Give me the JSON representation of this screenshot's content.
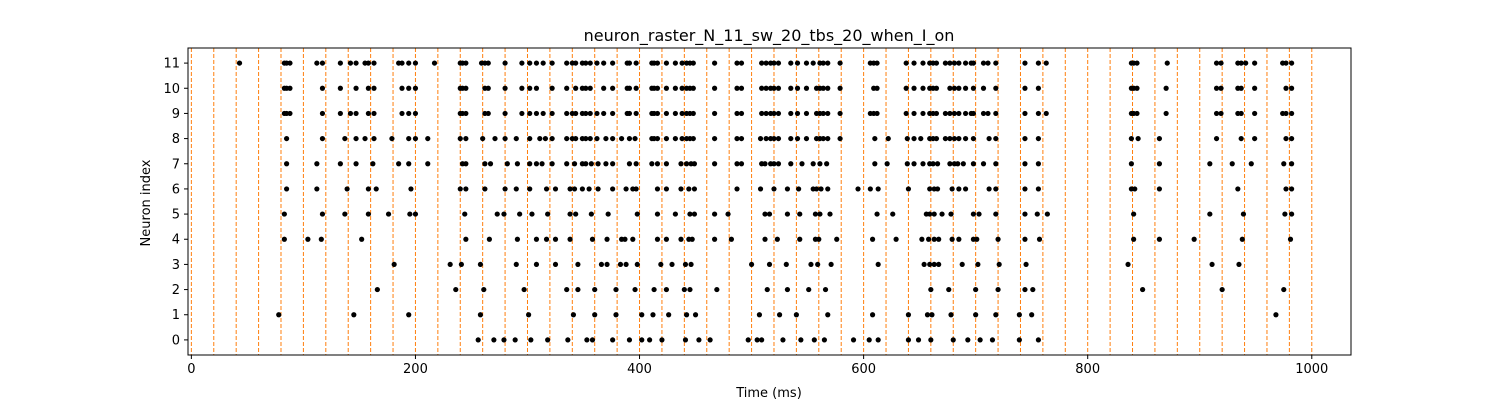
{
  "chart_data": {
    "type": "scatter",
    "title": "neuron_raster_N_11_sw_20_tbs_20_when_I_on",
    "xlabel": "Time (ms)",
    "ylabel": "Neuron index",
    "xlim": [
      -3,
      1035
    ],
    "ylim": [
      -0.6,
      11.6
    ],
    "x_ticks": [
      0,
      200,
      400,
      600,
      800,
      1000
    ],
    "y_ticks": [
      0,
      1,
      2,
      3,
      4,
      5,
      6,
      7,
      8,
      9,
      10,
      11
    ],
    "marker_color": "#000000",
    "vline_color": "#ff7f0e",
    "vlines": [
      0,
      20,
      40,
      60,
      80,
      100,
      120,
      140,
      160,
      180,
      200,
      220,
      240,
      260,
      280,
      300,
      320,
      340,
      360,
      380,
      400,
      420,
      440,
      460,
      480,
      500,
      520,
      540,
      560,
      580,
      600,
      620,
      640,
      660,
      680,
      700,
      720,
      740,
      760,
      780,
      800,
      820,
      840,
      860,
      880,
      900,
      920,
      940,
      960,
      980,
      1000
    ],
    "series": [
      {
        "neuron": 11,
        "spikes": [
          43,
          83,
          85,
          88,
          112,
          117,
          133,
          142,
          147,
          155,
          158,
          163,
          185,
          188,
          194,
          200,
          217,
          240,
          242,
          245,
          259,
          262,
          265,
          280,
          295,
          302,
          308,
          314,
          322,
          335,
          340,
          343,
          349,
          352,
          356,
          362,
          368,
          376,
          389,
          391,
          397,
          411,
          413,
          416,
          424,
          432,
          438,
          442,
          445,
          448,
          467,
          487,
          491,
          509,
          513,
          517,
          520,
          524,
          535,
          541,
          549,
          555,
          561,
          564,
          568,
          579,
          606,
          609,
          612,
          638,
          645,
          653,
          659,
          662,
          665,
          673,
          677,
          681,
          685,
          691,
          696,
          698,
          707,
          711,
          718,
          744,
          756,
          763,
          839,
          841,
          844,
          871,
          915,
          919,
          934,
          937,
          941,
          949,
          974,
          977,
          982
        ]
      },
      {
        "neuron": 10,
        "spikes": [
          83,
          85,
          88,
          117,
          133,
          147,
          158,
          163,
          188,
          194,
          200,
          240,
          242,
          245,
          262,
          265,
          280,
          295,
          302,
          308,
          322,
          335,
          343,
          349,
          352,
          356,
          368,
          376,
          389,
          391,
          397,
          411,
          413,
          416,
          424,
          432,
          438,
          442,
          445,
          448,
          467,
          487,
          491,
          509,
          513,
          517,
          520,
          524,
          535,
          541,
          549,
          558,
          561,
          564,
          568,
          579,
          609,
          612,
          638,
          645,
          653,
          659,
          662,
          665,
          677,
          681,
          685,
          691,
          698,
          707,
          718,
          744,
          756,
          839,
          841,
          844,
          870,
          915,
          919,
          934,
          937,
          949,
          977,
          982
        ]
      },
      {
        "neuron": 9,
        "spikes": [
          83,
          85,
          88,
          117,
          133,
          142,
          147,
          158,
          163,
          188,
          194,
          200,
          240,
          242,
          245,
          262,
          265,
          280,
          295,
          302,
          308,
          314,
          322,
          335,
          340,
          343,
          349,
          352,
          356,
          362,
          368,
          376,
          389,
          391,
          397,
          411,
          413,
          416,
          424,
          432,
          438,
          442,
          445,
          448,
          467,
          487,
          491,
          509,
          513,
          517,
          520,
          524,
          535,
          541,
          549,
          558,
          561,
          564,
          568,
          579,
          606,
          609,
          612,
          638,
          645,
          653,
          659,
          662,
          665,
          673,
          677,
          681,
          685,
          691,
          696,
          698,
          707,
          711,
          718,
          744,
          756,
          763,
          839,
          841,
          844,
          870,
          915,
          919,
          934,
          937,
          949,
          974,
          977,
          982
        ]
      },
      {
        "neuron": 8,
        "spikes": [
          85,
          117,
          137,
          147,
          155,
          163,
          179,
          194,
          200,
          211,
          240,
          245,
          260,
          271,
          280,
          290,
          302,
          311,
          316,
          322,
          335,
          340,
          343,
          349,
          352,
          356,
          362,
          370,
          376,
          384,
          391,
          396,
          411,
          413,
          416,
          424,
          432,
          438,
          442,
          445,
          448,
          467,
          487,
          491,
          508,
          513,
          517,
          520,
          524,
          535,
          541,
          549,
          558,
          561,
          564,
          568,
          579,
          610,
          622,
          639,
          645,
          651,
          659,
          662,
          665,
          673,
          677,
          681,
          685,
          691,
          698,
          712,
          718,
          744,
          756,
          839,
          845,
          864,
          915,
          937,
          949,
          977,
          982
        ]
      },
      {
        "neuron": 7,
        "spikes": [
          85,
          112,
          133,
          147,
          162,
          185,
          194,
          211,
          242,
          245,
          262,
          267,
          282,
          291,
          302,
          308,
          313,
          322,
          335,
          342,
          349,
          352,
          357,
          363,
          370,
          376,
          391,
          397,
          411,
          416,
          424,
          437,
          442,
          446,
          449,
          467,
          487,
          491,
          509,
          512,
          517,
          520,
          524,
          535,
          545,
          555,
          561,
          567,
          610,
          621,
          639,
          645,
          653,
          659,
          662,
          666,
          677,
          681,
          684,
          689,
          698,
          707,
          718,
          744,
          756,
          839,
          864,
          909,
          929,
          946,
          975,
          982
        ]
      },
      {
        "neuron": 6,
        "spikes": [
          85,
          112,
          139,
          158,
          165,
          196,
          240,
          245,
          262,
          280,
          290,
          302,
          317,
          325,
          338,
          342,
          349,
          355,
          363,
          376,
          388,
          394,
          397,
          416,
          424,
          437,
          444,
          449,
          487,
          508,
          520,
          532,
          542,
          555,
          558,
          562,
          568,
          595,
          606,
          613,
          640,
          659,
          663,
          666,
          679,
          685,
          691,
          712,
          718,
          744,
          756,
          839,
          842,
          864,
          934,
          977,
          982
        ]
      },
      {
        "neuron": 5,
        "spikes": [
          83,
          117,
          137,
          158,
          176,
          195,
          200,
          244,
          273,
          279,
          293,
          304,
          318,
          338,
          343,
          357,
          372,
          398,
          416,
          432,
          445,
          449,
          467,
          479,
          512,
          516,
          532,
          543,
          557,
          561,
          570,
          612,
          626,
          656,
          659,
          663,
          670,
          678,
          698,
          703,
          718,
          744,
          755,
          764,
          841,
          909,
          939,
          976,
          982
        ]
      },
      {
        "neuron": 4,
        "spikes": [
          83,
          104,
          116,
          152,
          245,
          266,
          291,
          308,
          317,
          325,
          338,
          358,
          371,
          384,
          387,
          394,
          416,
          424,
          437,
          444,
          447,
          467,
          482,
          512,
          523,
          543,
          557,
          560,
          576,
          608,
          629,
          652,
          658,
          663,
          667,
          679,
          685,
          698,
          701,
          720,
          744,
          757,
          841,
          864,
          895,
          938,
          981
        ]
      },
      {
        "neuron": 3,
        "spikes": [
          181,
          231,
          241,
          258,
          290,
          308,
          325,
          345,
          366,
          371,
          383,
          388,
          398,
          419,
          429,
          441,
          446,
          500,
          516,
          531,
          553,
          559,
          571,
          613,
          654,
          659,
          663,
          667,
          688,
          702,
          721,
          745,
          836,
          911,
          935
        ]
      },
      {
        "neuron": 2,
        "spikes": [
          166,
          236,
          261,
          297,
          335,
          345,
          360,
          379,
          396,
          413,
          424,
          440,
          445,
          469,
          514,
          532,
          551,
          566,
          660,
          676,
          700,
          720,
          744,
          751,
          849,
          920,
          975
        ]
      },
      {
        "neuron": 1,
        "spikes": [
          78,
          145,
          194,
          258,
          301,
          341,
          360,
          379,
          402,
          412,
          426,
          442,
          450,
          507,
          525,
          540,
          568,
          608,
          640,
          657,
          661,
          678,
          700,
          718,
          739,
          750,
          968
        ]
      },
      {
        "neuron": 0,
        "spikes": [
          256,
          270,
          279,
          289,
          303,
          318,
          336,
          353,
          358,
          376,
          391,
          402,
          409,
          420,
          441,
          453,
          463,
          497,
          505,
          509,
          528,
          544,
          556,
          565,
          591,
          605,
          613,
          640,
          649,
          660,
          680,
          693,
          704,
          715,
          739,
          756
        ]
      }
    ]
  }
}
